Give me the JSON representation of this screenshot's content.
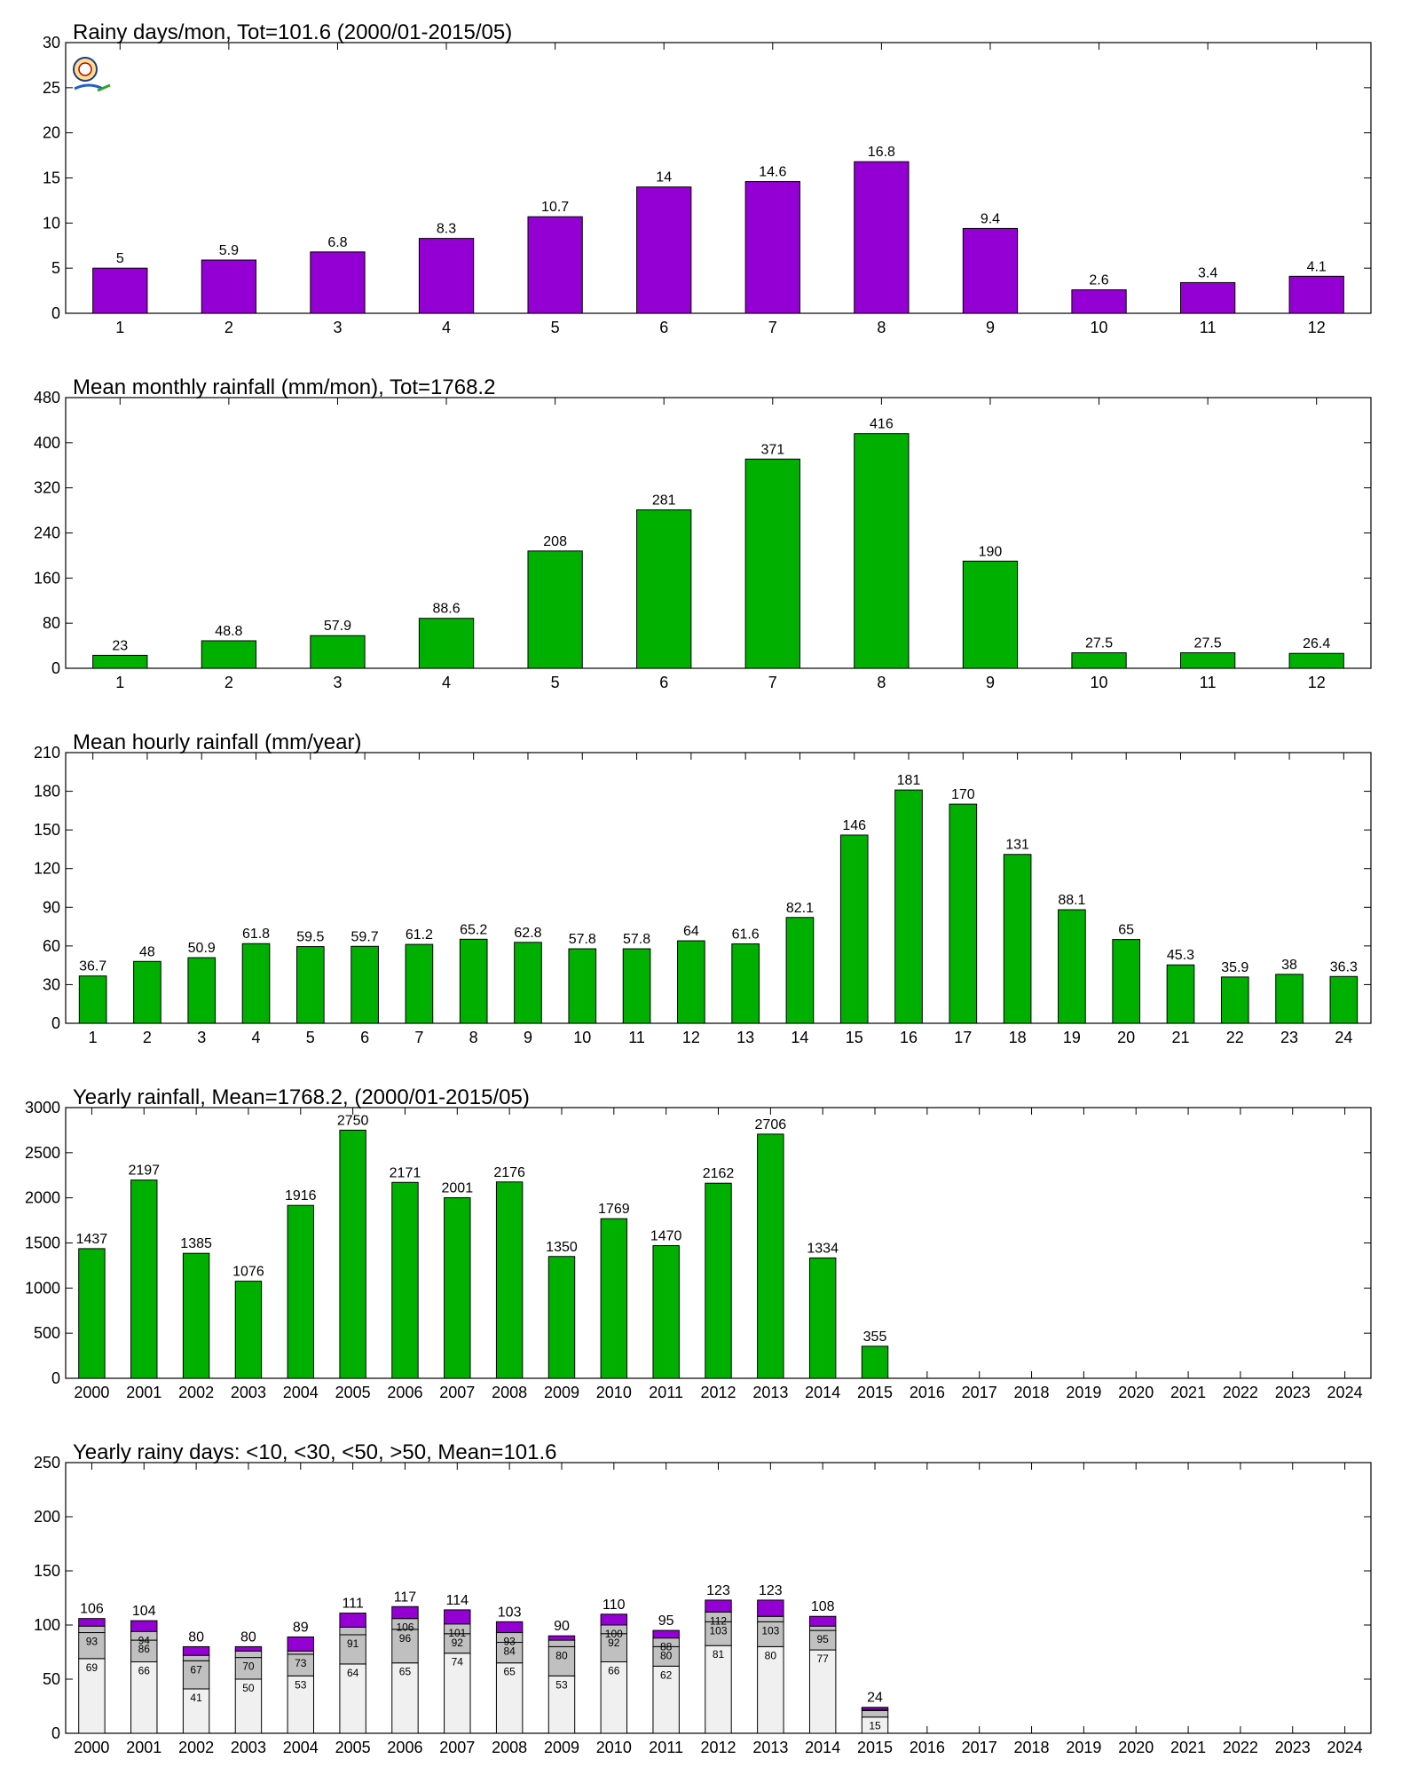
{
  "colors": {
    "purple": "#9400d3",
    "green": "#00b000",
    "gray": "#c0c0c0",
    "light": "#f0f0f0"
  },
  "chart_data": [
    {
      "id": "c1",
      "type": "bar",
      "title": "Rainy days/mon, Tot=101.6 (2000/01-2015/05)",
      "categories": [
        "1",
        "2",
        "3",
        "4",
        "5",
        "6",
        "7",
        "8",
        "9",
        "10",
        "11",
        "12"
      ],
      "values": [
        5,
        5.9,
        6.8,
        8.3,
        10.7,
        14,
        14.6,
        16.8,
        9.4,
        2.6,
        3.4,
        4.1
      ],
      "labels": [
        "5",
        "5.9",
        "6.8",
        "8.3",
        "10.7",
        "14",
        "14.6",
        "16.8",
        "9.4",
        "2.6",
        "3.4",
        "4.1"
      ],
      "yticks": [
        "0",
        "5",
        "10",
        "15",
        "20",
        "25",
        "30"
      ],
      "ylim": [
        0,
        30
      ],
      "color": "purple"
    },
    {
      "id": "c2",
      "type": "bar",
      "title": "Mean monthly rainfall (mm/mon), Tot=1768.2",
      "categories": [
        "1",
        "2",
        "3",
        "4",
        "5",
        "6",
        "7",
        "8",
        "9",
        "10",
        "11",
        "12"
      ],
      "values": [
        23,
        48.8,
        57.9,
        88.6,
        208,
        281,
        371,
        416,
        190,
        27.5,
        27.5,
        26.4
      ],
      "labels": [
        "23",
        "48.8",
        "57.9",
        "88.6",
        "208",
        "281",
        "371",
        "416",
        "190",
        "27.5",
        "27.5",
        "26.4"
      ],
      "yticks": [
        "0",
        "80",
        "160",
        "240",
        "320",
        "400",
        "480"
      ],
      "ylim": [
        0,
        480
      ],
      "color": "green"
    },
    {
      "id": "c3",
      "type": "bar",
      "title": "Mean hourly rainfall (mm/year)",
      "categories": [
        "1",
        "2",
        "3",
        "4",
        "5",
        "6",
        "7",
        "8",
        "9",
        "10",
        "11",
        "12",
        "13",
        "14",
        "15",
        "16",
        "17",
        "18",
        "19",
        "20",
        "21",
        "22",
        "23",
        "24"
      ],
      "values": [
        36.7,
        48,
        50.9,
        61.8,
        59.5,
        59.7,
        61.2,
        65.2,
        62.8,
        57.8,
        57.8,
        64,
        61.6,
        82.1,
        146,
        181,
        170,
        131,
        88.1,
        65,
        45.3,
        35.9,
        38,
        36.3
      ],
      "labels": [
        "36.7",
        "48",
        "50.9",
        "61.8",
        "59.5",
        "59.7",
        "61.2",
        "65.2",
        "62.8",
        "57.8",
        "57.8",
        "64",
        "61.6",
        "82.1",
        "146",
        "181",
        "170",
        "131",
        "88.1",
        "65",
        "45.3",
        "35.9",
        "38",
        "36.3"
      ],
      "yticks": [
        "0",
        "30",
        "60",
        "90",
        "120",
        "150",
        "180",
        "210"
      ],
      "ylim": [
        0,
        210
      ],
      "color": "green"
    },
    {
      "id": "c4",
      "type": "bar",
      "title": "Yearly rainfall, Mean=1768.2, (2000/01-2015/05)",
      "categories": [
        "2000",
        "2001",
        "2002",
        "2003",
        "2004",
        "2005",
        "2006",
        "2007",
        "2008",
        "2009",
        "2010",
        "2011",
        "2012",
        "2013",
        "2014",
        "2015",
        "2016",
        "2017",
        "2018",
        "2019",
        "2020",
        "2021",
        "2022",
        "2023",
        "2024"
      ],
      "values": [
        1437,
        2197,
        1385,
        1076,
        1916,
        2750,
        2171,
        2001,
        2176,
        1350,
        1769,
        1470,
        2162,
        2706,
        1334,
        355,
        null,
        null,
        null,
        null,
        null,
        null,
        null,
        null,
        null
      ],
      "labels": [
        "1437",
        "2197",
        "1385",
        "1076",
        "1916",
        "2750",
        "2171",
        "2001",
        "2176",
        "1350",
        "1769",
        "1470",
        "2162",
        "2706",
        "1334",
        "355",
        "",
        "",
        "",
        "",
        "",
        "",
        "",
        "",
        ""
      ],
      "yticks": [
        "0",
        "500",
        "1000",
        "1500",
        "2000",
        "2500",
        "3000"
      ],
      "ylim": [
        0,
        3000
      ],
      "color": "green"
    },
    {
      "id": "c5",
      "type": "bar",
      "stacked": true,
      "title": "Yearly rainy days: <10, <30, <50, >50, Mean=101.6",
      "categories": [
        "2000",
        "2001",
        "2002",
        "2003",
        "2004",
        "2005",
        "2006",
        "2007",
        "2008",
        "2009",
        "2010",
        "2011",
        "2012",
        "2013",
        "2014",
        "2015",
        "2016",
        "2017",
        "2018",
        "2019",
        "2020",
        "2021",
        "2022",
        "2023",
        "2024"
      ],
      "cumulative": {
        "lt10": [
          69,
          66,
          41,
          50,
          53,
          64,
          65,
          74,
          65,
          53,
          66,
          62,
          81,
          80,
          77,
          15,
          null,
          null,
          null,
          null,
          null,
          null,
          null,
          null,
          null
        ],
        "lt30": [
          93,
          86,
          67,
          70,
          73,
          91,
          96,
          92,
          84,
          80,
          92,
          80,
          103,
          103,
          95,
          21,
          null,
          null,
          null,
          null,
          null,
          null,
          null,
          null,
          null
        ],
        "lt50": [
          99,
          94,
          72,
          76,
          76,
          98,
          106,
          101,
          93,
          86,
          100,
          88,
          112,
          108,
          99,
          22,
          null,
          null,
          null,
          null,
          null,
          null,
          null,
          null,
          null
        ],
        "total": [
          106,
          104,
          80,
          80,
          89,
          111,
          117,
          114,
          103,
          90,
          110,
          95,
          123,
          123,
          108,
          24,
          null,
          null,
          null,
          null,
          null,
          null,
          null,
          null,
          null
        ]
      },
      "seg_labels": {
        "lt10": [
          "69",
          "66",
          "41",
          "50",
          "53",
          "64",
          "65",
          "74",
          "65",
          "53",
          "66",
          "62",
          "81",
          "80",
          "77",
          "15",
          "",
          "",
          "",
          "",
          "",
          "",
          "",
          "",
          ""
        ],
        "lt30": [
          "93",
          "86",
          "67",
          "70",
          "73",
          "91",
          "96",
          "92",
          "84",
          "80",
          "92",
          "80",
          "103",
          "103",
          "95",
          "",
          "",
          "",
          "",
          "",
          "",
          "",
          "",
          "",
          ""
        ],
        "lt50": [
          "",
          "94",
          "",
          "",
          "",
          "",
          "106",
          "101",
          "93",
          "",
          "100",
          "88",
          "112",
          "",
          "",
          "",
          "",
          "",
          "",
          "",
          "",
          "",
          "",
          "",
          ""
        ]
      },
      "total_labels": [
        "106",
        "104",
        "80",
        "80",
        "89",
        "111",
        "117",
        "114",
        "103",
        "90",
        "110",
        "95",
        "123",
        "123",
        "108",
        "24",
        "",
        "",
        "",
        "",
        "",
        "",
        "",
        "",
        ""
      ],
      "yticks": [
        "0",
        "50",
        "100",
        "150",
        "200",
        "250"
      ],
      "ylim": [
        0,
        250
      ],
      "colors": [
        "light",
        "gray",
        "gray",
        "purple"
      ]
    }
  ]
}
